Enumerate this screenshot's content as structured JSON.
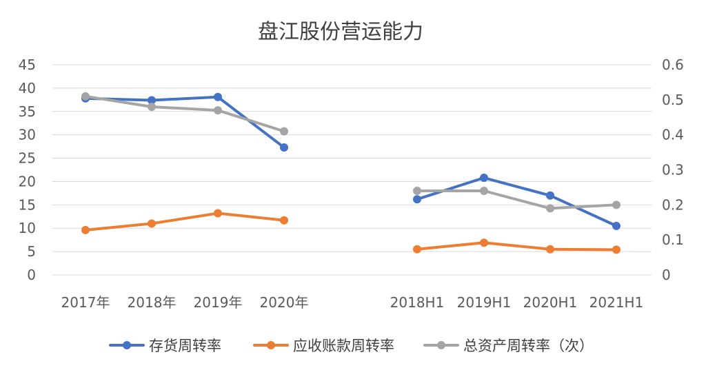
{
  "chart_data": {
    "type": "line",
    "title": "盘江股份营运能力",
    "categories": [
      "2017年",
      "2018年",
      "2019年",
      "2020年",
      "2018H1",
      "2019H1",
      "2020H1",
      "2021H1"
    ],
    "y_left": {
      "ticks": [
        "0",
        "5",
        "10",
        "15",
        "20",
        "25",
        "30",
        "35",
        "40",
        "45"
      ],
      "ylim": [
        0,
        45
      ]
    },
    "y_right": {
      "ticks": [
        "0",
        "0.1",
        "0.2",
        "0.3",
        "0.4",
        "0.5",
        "0.6"
      ],
      "ylim": [
        0,
        0.6
      ]
    },
    "grid": true,
    "legend_position": "bottom",
    "series": [
      {
        "name": "存货周转率",
        "axis": "left",
        "color": "#4472c4",
        "segments": [
          {
            "categories": [
              "2017年",
              "2018年",
              "2019年",
              "2020年"
            ],
            "values": [
              37.8,
              37.4,
              38.1,
              27.3
            ]
          },
          {
            "categories": [
              "2018H1",
              "2019H1",
              "2020H1",
              "2021H1"
            ],
            "values": [
              16.2,
              20.8,
              17.0,
              10.5
            ]
          }
        ]
      },
      {
        "name": "应收账款周转率",
        "axis": "left",
        "color": "#ed7d31",
        "segments": [
          {
            "categories": [
              "2017年",
              "2018年",
              "2019年",
              "2020年"
            ],
            "values": [
              9.6,
              11.0,
              13.2,
              11.7
            ]
          },
          {
            "categories": [
              "2018H1",
              "2019H1",
              "2020H1",
              "2021H1"
            ],
            "values": [
              5.5,
              6.9,
              5.5,
              5.4
            ]
          }
        ]
      },
      {
        "name": "总资产周转率（次）",
        "axis": "right",
        "color": "#a5a5a5",
        "segments": [
          {
            "categories": [
              "2017年",
              "2018年",
              "2019年",
              "2020年"
            ],
            "values": [
              0.51,
              0.48,
              0.47,
              0.41
            ]
          },
          {
            "categories": [
              "2018H1",
              "2019H1",
              "2020H1",
              "2021H1"
            ],
            "values": [
              0.24,
              0.24,
              0.19,
              0.2
            ]
          }
        ]
      }
    ]
  }
}
